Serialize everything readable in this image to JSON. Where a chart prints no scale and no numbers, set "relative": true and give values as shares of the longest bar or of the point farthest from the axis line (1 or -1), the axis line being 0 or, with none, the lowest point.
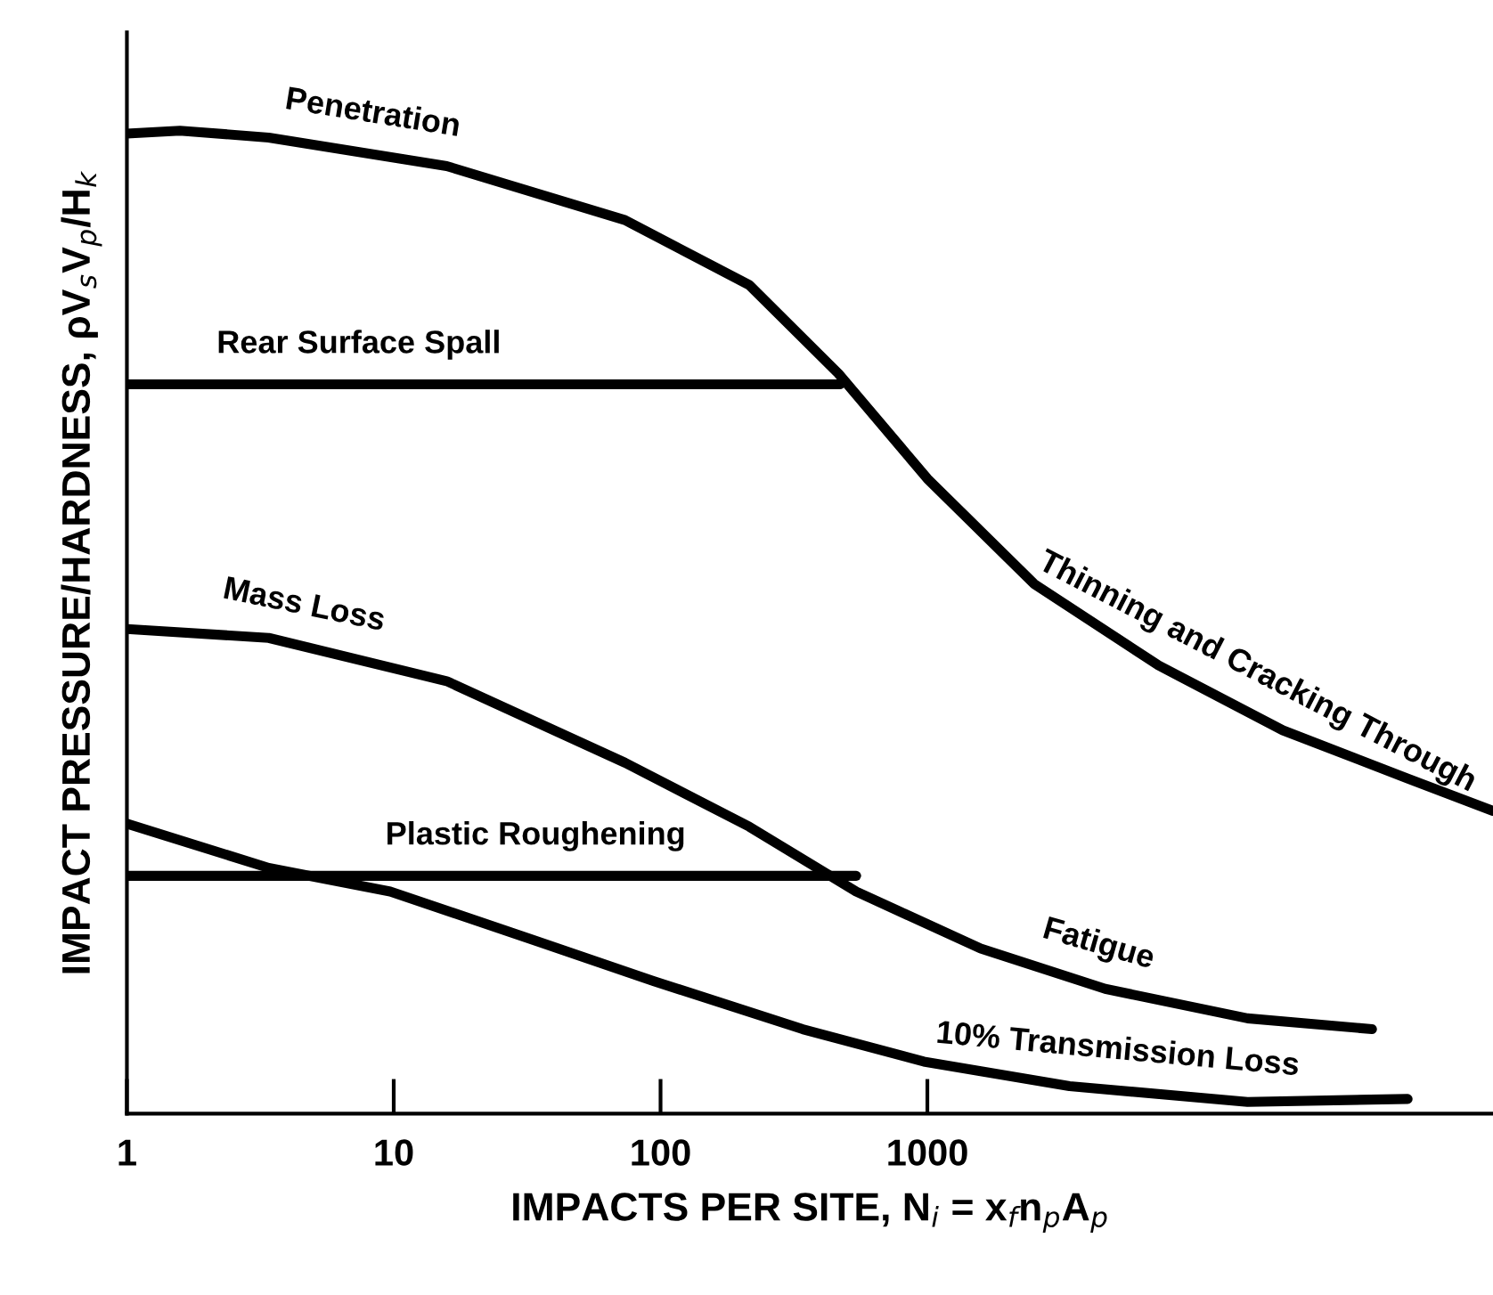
{
  "chart_data": {
    "type": "line",
    "relative": true,
    "log": "x",
    "xlabel": "IMPACTS PER SITE, N$_{i}$ = x$_{f}$n$_{p}$A$_{p}$",
    "ylabel": "IMPACT PRESSURE/HARDNESS, ρV$_{s}$V$_{p}$/H$_{k}$",
    "xlim": [
      1,
      131800
    ],
    "xticks": [
      1,
      10,
      100,
      1000
    ],
    "grid": false,
    "marker": "none",
    "line_style": "solid",
    "series": [
      {
        "color": "#000000",
        "x": [
          1,
          1.58,
          3.4,
          15.8,
          73.6,
          215,
          464,
          1000,
          2512,
          7360,
          21500,
          63100,
          131800
        ],
        "values": [
          0.997,
          1,
          0.993,
          0.964,
          0.909,
          0.843,
          0.753,
          0.646,
          0.539,
          0.456,
          0.39,
          0.341,
          0.308
        ]
      },
      {
        "color": "#000000",
        "x": [
          1,
          470
        ],
        "values": [
          0.742,
          0.742
        ]
      },
      {
        "color": "#000000",
        "x": [
          1,
          3.4,
          15.8,
          73.6,
          215,
          541,
          1585,
          4640,
          15850,
          46400
        ],
        "values": [
          0.493,
          0.484,
          0.44,
          0.357,
          0.292,
          0.226,
          0.168,
          0.127,
          0.097,
          0.086
        ]
      },
      {
        "color": "#000000",
        "x": [
          1,
          541
        ],
        "values": [
          0.242,
          0.242
        ]
      },
      {
        "color": "#000000",
        "x": [
          1,
          3.4,
          9.7,
          34,
          94,
          341,
          970,
          3410,
          15850,
          63100
        ],
        "values": [
          0.295,
          0.25,
          0.226,
          0.176,
          0.135,
          0.086,
          0.053,
          0.028,
          0.012,
          0.015
        ]
      }
    ],
    "annotations": [
      {
        "text": "Penetration",
        "x": 7.9,
        "y": 0.977
      },
      {
        "text": "Rear Surface Spall",
        "x": 7.4,
        "y": 0.742
      },
      {
        "text": "Thinning and Cracking Through",
        "x": 14700,
        "y": 0.413
      },
      {
        "text": "Mass Loss",
        "x": 4.3,
        "y": 0.477
      },
      {
        "text": "Plastic Roughening",
        "x": 34,
        "y": 0.242
      },
      {
        "text": "Fatigue",
        "x": 3980,
        "y": 0.133
      },
      {
        "text": "10% Transmission Loss",
        "x": 5010,
        "y": 0.024
      }
    ]
  }
}
